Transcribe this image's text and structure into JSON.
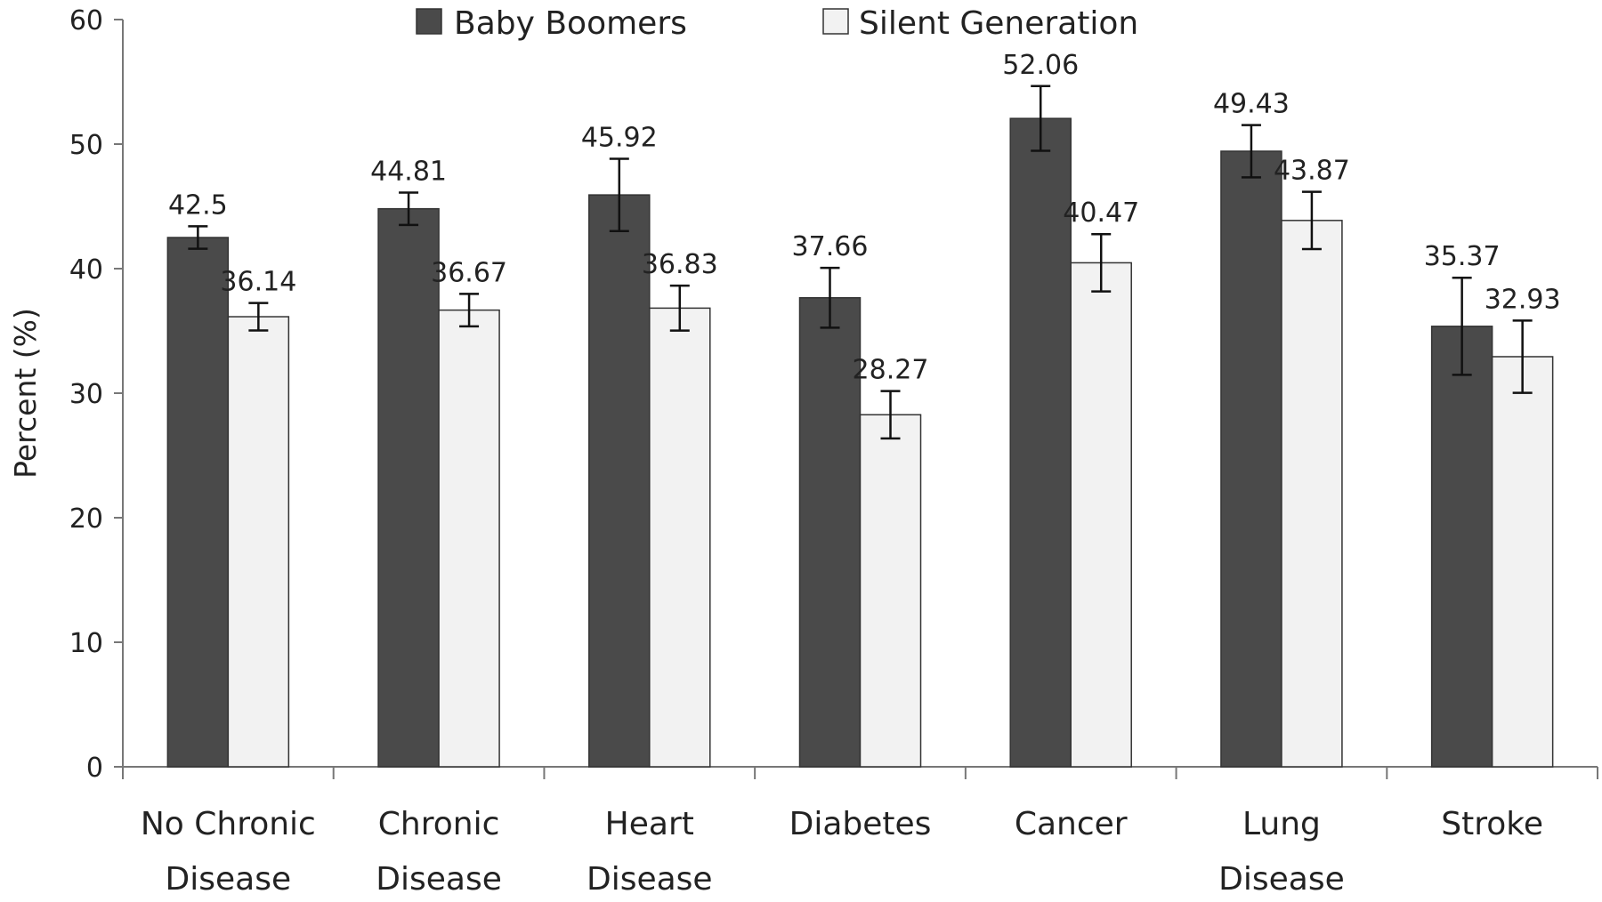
{
  "chart_data": {
    "type": "bar",
    "title": "",
    "xlabel": "",
    "ylabel": "Percent (%)",
    "ylim": [
      0,
      60
    ],
    "yticks": [
      0,
      10,
      20,
      30,
      40,
      50,
      60
    ],
    "grid": false,
    "legend": "top-center",
    "categories": [
      [
        "No Chronic",
        "Disease"
      ],
      [
        "Chronic",
        "Disease"
      ],
      [
        "Heart",
        "Disease"
      ],
      [
        "Diabetes"
      ],
      [
        "Cancer"
      ],
      [
        "Lung",
        "Disease"
      ],
      [
        "Stroke"
      ]
    ],
    "series": [
      {
        "name": "Baby Boomers",
        "color": "#4a4a4a",
        "values": [
          42.5,
          44.81,
          45.92,
          37.66,
          52.06,
          49.43,
          35.37
        ],
        "labels": [
          "42.5",
          "44.81",
          "45.92",
          "37.66",
          "52.06",
          "49.43",
          "35.37"
        ],
        "error": [
          0.9,
          1.3,
          2.9,
          2.4,
          2.6,
          2.1,
          3.9
        ]
      },
      {
        "name": "Silent Generation",
        "color": "#f2f2f2",
        "values": [
          36.14,
          36.67,
          36.83,
          28.27,
          40.47,
          43.87,
          32.93
        ],
        "labels": [
          "36.14",
          "36.67",
          "36.83",
          "28.27",
          "40.47",
          "43.87",
          "32.93"
        ],
        "error": [
          1.1,
          1.3,
          1.8,
          1.9,
          2.3,
          2.3,
          2.9
        ]
      }
    ]
  }
}
